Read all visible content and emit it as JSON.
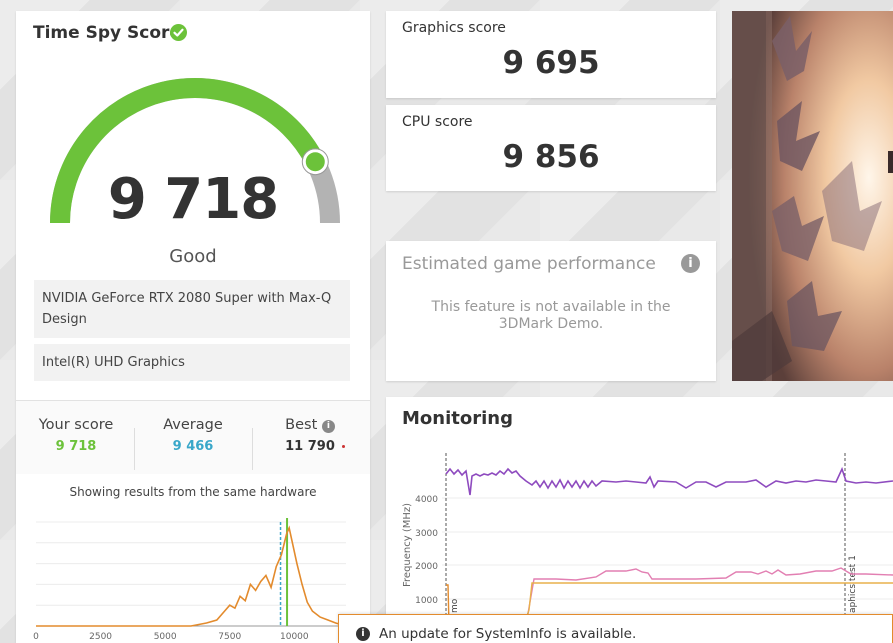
{
  "score_card": {
    "title": "Time Spy Score",
    "score": "9 718",
    "rating": "Good",
    "gauge_fraction": 0.85,
    "hardware": [
      "NVIDIA GeForce RTX 2080 Super with Max-Q Design",
      "Intel(R) UHD Graphics"
    ],
    "stats": {
      "your_score_label": "Your score",
      "your_score_value": "9 718",
      "average_label": "Average",
      "average_value": "9 466",
      "best_label": "Best",
      "best_value": "11 790"
    },
    "histogram_caption": "Showing results from the same hardware"
  },
  "histogram": {
    "x_ticks": [
      "0",
      "2500",
      "5000",
      "7500",
      "10000"
    ],
    "x_range": [
      0,
      12000
    ],
    "your_score": 9718,
    "average": 9466,
    "points": [
      [
        0,
        0
      ],
      [
        3000,
        0
      ],
      [
        6000,
        0
      ],
      [
        6600,
        2
      ],
      [
        7000,
        4
      ],
      [
        7300,
        10
      ],
      [
        7500,
        14
      ],
      [
        7700,
        12
      ],
      [
        7900,
        20
      ],
      [
        8100,
        17
      ],
      [
        8300,
        28
      ],
      [
        8500,
        24
      ],
      [
        8700,
        30
      ],
      [
        8900,
        34
      ],
      [
        9100,
        26
      ],
      [
        9300,
        40
      ],
      [
        9500,
        48
      ],
      [
        9700,
        62
      ],
      [
        9800,
        66
      ],
      [
        9900,
        58
      ],
      [
        10100,
        42
      ],
      [
        10300,
        28
      ],
      [
        10500,
        16
      ],
      [
        10700,
        10
      ],
      [
        11000,
        6
      ],
      [
        11300,
        4
      ],
      [
        11600,
        2
      ],
      [
        12000,
        0
      ]
    ],
    "y_max": 70
  },
  "graphics_score": {
    "label": "Graphics score",
    "value": "9 695"
  },
  "cpu_score": {
    "label": "CPU score",
    "value": "9 856"
  },
  "estimated_game_performance": {
    "title": "Estimated game performance",
    "message_line1": "This feature is not available in the",
    "message_line2": "3DMark Demo."
  },
  "monitoring": {
    "title": "Monitoring",
    "y_axis_label": "Frequency (MHz)",
    "y_ticks": [
      "4000",
      "3000",
      "2000",
      "1000"
    ],
    "marker_labels": [
      "mo",
      "aphics test 1"
    ],
    "colors": {
      "cpu_clock": "#8e4bbf",
      "gpu_clock": "#e27fb2",
      "gpu_memory": "#e8b04b",
      "orange": "#e38b2d"
    }
  },
  "notification": {
    "text": "An update for SystemInfo is available."
  },
  "colors": {
    "gauge_green": "#6cc23a",
    "gauge_gray": "#b3b3b3",
    "your_score": "#6cc23a",
    "average": "#39a7c9",
    "histogram_line": "#e38b2d"
  }
}
